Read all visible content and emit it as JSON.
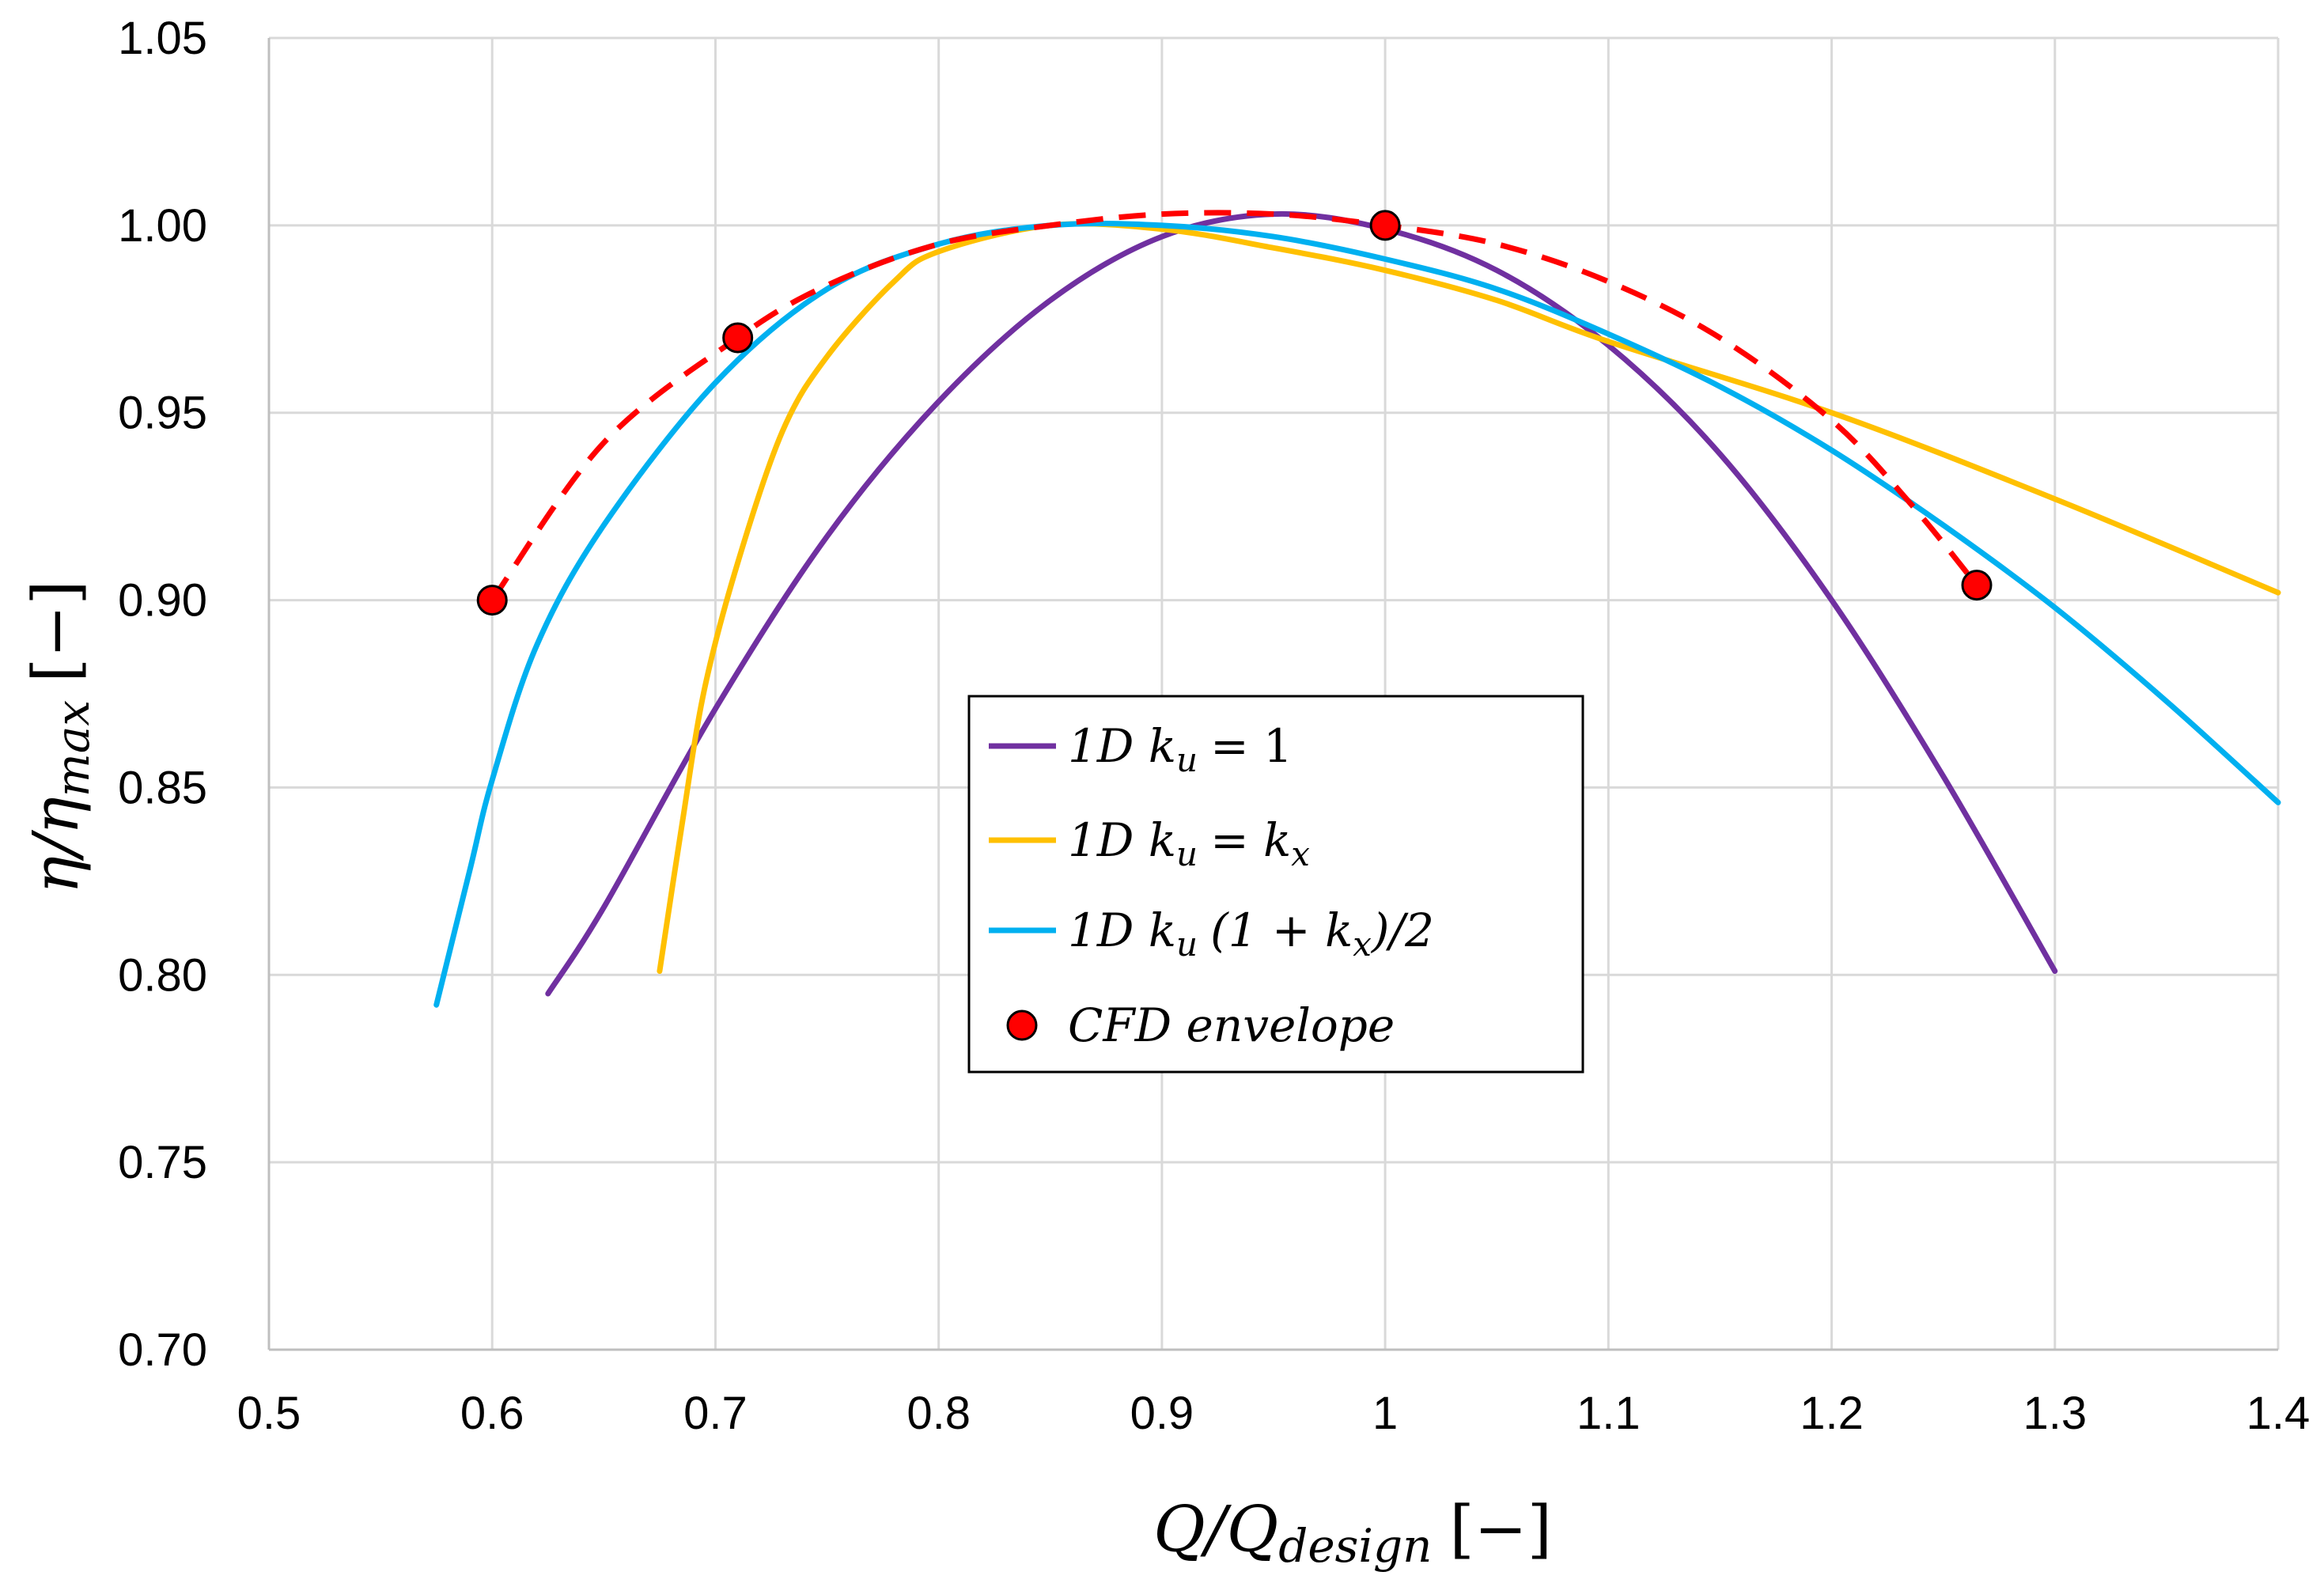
{
  "chart_data": {
    "type": "line",
    "title": "",
    "xlabel": "Q/Q_design [−]",
    "xlabel_parts": {
      "main": "Q/Q",
      "sub": "design",
      "unit": "[−]"
    },
    "ylabel": "η/η_max [−]",
    "ylabel_parts": {
      "main": "η/η",
      "sub": "max",
      "unit": "[−]"
    },
    "xlim": [
      0.5,
      1.4
    ],
    "ylim": [
      0.7,
      1.05
    ],
    "x_ticks": [
      0.5,
      0.6,
      0.7,
      0.8,
      0.9,
      1.0,
      1.1,
      1.2,
      1.3,
      1.4
    ],
    "x_tick_labels": [
      "0.5",
      "0.6",
      "0.7",
      "0.8",
      "0.9",
      "1",
      "1.1",
      "1.2",
      "1.3",
      "1.4"
    ],
    "y_ticks": [
      0.7,
      0.75,
      0.8,
      0.85,
      0.9,
      0.95,
      1.0,
      1.05
    ],
    "y_tick_labels": [
      "0.70",
      "0.75",
      "0.80",
      "0.85",
      "0.90",
      "0.95",
      "1.00",
      "1.05"
    ],
    "grid": true,
    "legend_position": "center",
    "series": [
      {
        "name": "1D k_u = 1",
        "label": "1D k",
        "label_sub": "u",
        "label_tail": "= 1",
        "color": "#7030a0",
        "dashed": false,
        "x": [
          0.625,
          0.65,
          0.7,
          0.75,
          0.8,
          0.85,
          0.9,
          0.95,
          1.0,
          1.05,
          1.1,
          1.15,
          1.2,
          1.25,
          1.3
        ],
        "y": [
          0.795,
          0.818,
          0.871,
          0.917,
          0.953,
          0.98,
          0.997,
          1.003,
          0.999,
          0.988,
          0.968,
          0.939,
          0.9,
          0.853,
          0.801
        ]
      },
      {
        "name": "1D k_u = k_x",
        "label": "1D k",
        "label_sub": "u",
        "label_tail": "= k",
        "label_tail_sub": "x",
        "color": "#ffc000",
        "dashed": false,
        "x": [
          0.675,
          0.685,
          0.695,
          0.71,
          0.73,
          0.75,
          0.78,
          0.8,
          0.85,
          0.9,
          0.95,
          1.0,
          1.05,
          1.1,
          1.2,
          1.3,
          1.4
        ],
        "y": [
          0.801,
          0.84,
          0.876,
          0.91,
          0.945,
          0.965,
          0.985,
          0.993,
          1.0,
          0.999,
          0.994,
          0.988,
          0.98,
          0.969,
          0.95,
          0.927,
          0.902
        ]
      },
      {
        "name": "1D k_u (1 + k_x)/2",
        "label": "1D k",
        "label_sub": "u",
        "label_tail": "(1 + k",
        "label_tail_sub": "x",
        "label_tail2": ")/2",
        "color": "#00b0f0",
        "dashed": false,
        "x": [
          0.575,
          0.59,
          0.6,
          0.62,
          0.65,
          0.7,
          0.75,
          0.8,
          0.85,
          0.9,
          0.95,
          1.0,
          1.05,
          1.1,
          1.15,
          1.2,
          1.25,
          1.3,
          1.35,
          1.4
        ],
        "y": [
          0.792,
          0.828,
          0.852,
          0.888,
          0.92,
          0.958,
          0.983,
          0.995,
          1.0,
          1.0,
          0.997,
          0.991,
          0.983,
          0.971,
          0.957,
          0.94,
          0.92,
          0.898,
          0.873,
          0.846
        ]
      },
      {
        "name": "CFD envelope",
        "label": "CFD envelope",
        "color": "#ff0000",
        "dashed": true,
        "marker": "circle",
        "curve_x": [
          0.6,
          0.65,
          0.71,
          0.75,
          0.8,
          0.85,
          0.9,
          0.95,
          1.0,
          1.05,
          1.1,
          1.15,
          1.2,
          1.235,
          1.265
        ],
        "curve_y": [
          0.9,
          0.942,
          0.97,
          0.984,
          0.995,
          1.0,
          1.003,
          1.003,
          1.0,
          0.995,
          0.985,
          0.97,
          0.948,
          0.926,
          0.904
        ],
        "points_x": [
          0.6,
          0.71,
          1.0,
          1.265
        ],
        "points_y": [
          0.9,
          0.97,
          1.0,
          0.904
        ]
      }
    ]
  }
}
